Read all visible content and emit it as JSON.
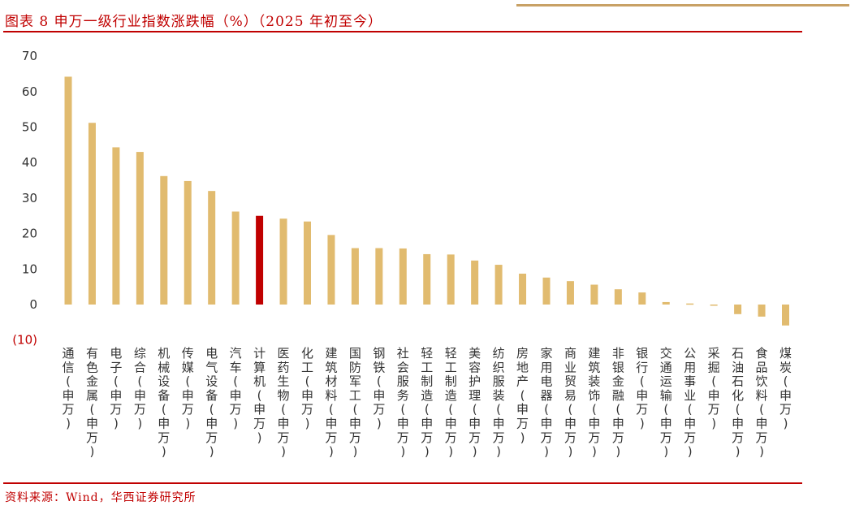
{
  "header": {
    "title": "图表 8  申万一级行业指数涨跌幅（%）（2025 年初至今）"
  },
  "footer": {
    "source": "资料来源：Wind，华西证券研究所"
  },
  "colors": {
    "bar": "#e1bb6f",
    "highlight": "#c00000",
    "accent_red": "#c00000",
    "gold_line": "#c8a165"
  },
  "chart_data": {
    "type": "bar",
    "title": "",
    "xlabel": "",
    "ylabel": "",
    "ylim": [
      -10,
      70
    ],
    "yticks": [
      "(10)",
      "0",
      "10",
      "20",
      "30",
      "40",
      "50",
      "60",
      "70"
    ],
    "grid": false,
    "legend": "none",
    "highlight_category": "计算机(申万)",
    "categories": [
      "通信(申万)",
      "有色金属(申万)",
      "电子(申万)",
      "综合(申万)",
      "机械设备(申万)",
      "传媒(申万)",
      "电气设备(申万)",
      "汽车(申万)",
      "计算机(申万)",
      "医药生物(申万)",
      "化工(申万)",
      "建筑材料(申万)",
      "国防军工(申万)",
      "钢铁(申万)",
      "社会服务(申万)",
      "轻工制造(申万)",
      "轻工制造(申万)",
      "美容护理(申万)",
      "纺织服装(申万)",
      "房地产(申万)",
      "家用电器(申万)",
      "商业贸易(申万)",
      "建筑装饰(申万)",
      "非银金融(申万)",
      "银行(申万)",
      "交通运输(申万)",
      "公用事业(申万)",
      "采掘(申万)",
      "石油石化(申万)",
      "食品饮料(申万)",
      "煤炭(申万)"
    ],
    "values": [
      64.2,
      51.2,
      44.3,
      43.0,
      36.2,
      34.8,
      32.0,
      26.2,
      25.0,
      24.2,
      23.4,
      19.6,
      15.9,
      15.9,
      15.8,
      14.2,
      14.1,
      12.4,
      11.2,
      8.7,
      7.6,
      6.6,
      5.6,
      4.3,
      3.4,
      0.7,
      0.3,
      0.0,
      -2.7,
      -3.4,
      -5.9
    ]
  }
}
